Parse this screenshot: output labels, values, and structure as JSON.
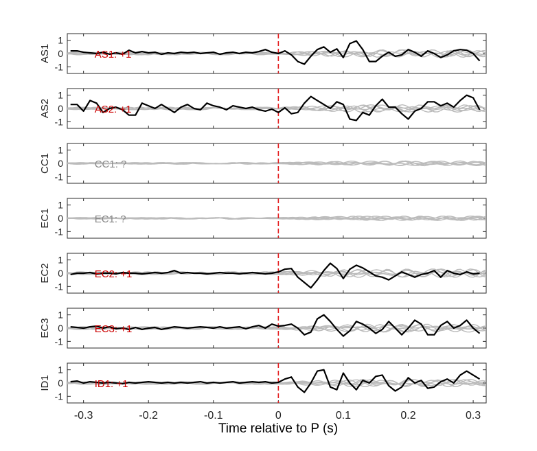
{
  "figure": {
    "xlabel": "Time relative to P (s)",
    "x_ticks": [
      "-0.3",
      "-0.2",
      "-0.1",
      "0",
      "0.1",
      "0.2",
      "0.3"
    ],
    "y_ticks": [
      "1",
      "0",
      "-1"
    ]
  },
  "colors": {
    "signal": "#000000",
    "background_traces": "#bbbbbb",
    "p_marker": "#e41a1c",
    "polarity_determined": "#cc0000",
    "polarity_unknown": "#888888"
  },
  "chart_data": [
    {
      "type": "line",
      "channel": "AS1",
      "annotation": "AS1: +1",
      "polarity": "+1",
      "x": [
        -0.32,
        -0.31,
        -0.3,
        -0.29,
        -0.28,
        -0.27,
        -0.26,
        -0.25,
        -0.24,
        -0.23,
        -0.22,
        -0.21,
        -0.2,
        -0.19,
        -0.18,
        -0.17,
        -0.16,
        -0.15,
        -0.14,
        -0.13,
        -0.12,
        -0.11,
        -0.1,
        -0.09,
        -0.08,
        -0.07,
        -0.06,
        -0.05,
        -0.04,
        -0.03,
        -0.02,
        -0.01,
        0.0,
        0.01,
        0.02,
        0.03,
        0.04,
        0.05,
        0.06,
        0.07,
        0.08,
        0.09,
        0.1,
        0.11,
        0.12,
        0.13,
        0.14,
        0.15,
        0.16,
        0.17,
        0.18,
        0.19,
        0.2,
        0.21,
        0.22,
        0.23,
        0.24,
        0.25,
        0.26,
        0.27,
        0.28,
        0.29,
        0.3,
        0.31
      ],
      "y": [
        0.2,
        0.2,
        0.1,
        0.05,
        0.0,
        0.1,
        -0.05,
        0.05,
        -0.05,
        0.25,
        0.05,
        0.15,
        0.05,
        0.1,
        -0.05,
        0.05,
        0.0,
        0.1,
        0.05,
        0.1,
        0.0,
        0.05,
        0.1,
        -0.05,
        0.05,
        0.1,
        0.0,
        0.1,
        0.05,
        0.15,
        0.3,
        0.1,
        0.0,
        0.2,
        -0.1,
        -0.6,
        -0.8,
        -0.2,
        0.3,
        0.5,
        0.1,
        0.35,
        -0.3,
        0.75,
        0.95,
        0.3,
        -0.6,
        -0.6,
        -0.2,
        0.1,
        -0.2,
        -0.1,
        0.3,
        0.1,
        -0.2,
        0.2,
        0.0,
        -0.3,
        -0.1,
        0.2,
        0.3,
        0.25,
        0.0,
        -0.55
      ],
      "ylim": [
        -1.5,
        1.5
      ],
      "xlim": [
        -0.325,
        0.32
      ]
    },
    {
      "type": "line",
      "channel": "AS2",
      "annotation": "AS2: +1",
      "polarity": "+1",
      "x": [
        -0.32,
        -0.31,
        -0.3,
        -0.29,
        -0.28,
        -0.27,
        -0.26,
        -0.25,
        -0.24,
        -0.23,
        -0.22,
        -0.21,
        -0.2,
        -0.19,
        -0.18,
        -0.17,
        -0.16,
        -0.15,
        -0.14,
        -0.13,
        -0.12,
        -0.11,
        -0.1,
        -0.09,
        -0.08,
        -0.07,
        -0.06,
        -0.05,
        -0.04,
        -0.03,
        -0.02,
        -0.01,
        0.0,
        0.01,
        0.02,
        0.03,
        0.04,
        0.05,
        0.06,
        0.07,
        0.08,
        0.09,
        0.1,
        0.11,
        0.12,
        0.13,
        0.14,
        0.15,
        0.16,
        0.17,
        0.18,
        0.19,
        0.2,
        0.21,
        0.22,
        0.23,
        0.24,
        0.25,
        0.26,
        0.27,
        0.28,
        0.29,
        0.3,
        0.31
      ],
      "y": [
        0.3,
        0.3,
        -0.2,
        0.6,
        0.4,
        -0.3,
        0.0,
        0.1,
        -0.1,
        -0.5,
        -0.5,
        0.4,
        0.2,
        0.0,
        0.3,
        0.0,
        -0.3,
        0.1,
        0.3,
        0.0,
        -0.1,
        0.4,
        0.2,
        0.1,
        -0.1,
        0.2,
        0.1,
        0.0,
        0.1,
        -0.1,
        -0.2,
        -0.05,
        -0.3,
        0.05,
        -0.4,
        -0.3,
        0.4,
        0.9,
        0.6,
        0.3,
        0.0,
        0.5,
        0.3,
        -0.8,
        -0.9,
        -0.3,
        -0.5,
        0.2,
        0.7,
        0.1,
        0.1,
        -0.4,
        -0.8,
        -0.2,
        0.0,
        0.5,
        0.5,
        0.2,
        0.4,
        0.1,
        0.6,
        1.0,
        0.8,
        -0.1
      ],
      "ylim": [
        -1.5,
        1.5
      ],
      "xlim": [
        -0.325,
        0.32
      ]
    },
    {
      "type": "line",
      "channel": "CC1",
      "annotation": "CC1: ?",
      "polarity": "?",
      "x": [],
      "y": [],
      "ylim": [
        -1.5,
        1.5
      ],
      "xlim": [
        -0.325,
        0.32
      ]
    },
    {
      "type": "line",
      "channel": "EC1",
      "annotation": "EC1: ?",
      "polarity": "?",
      "x": [],
      "y": [],
      "ylim": [
        -1.5,
        1.5
      ],
      "xlim": [
        -0.325,
        0.32
      ]
    },
    {
      "type": "line",
      "channel": "EC2",
      "annotation": "EC2: +1",
      "polarity": "+1",
      "x": [
        -0.32,
        -0.31,
        -0.3,
        -0.29,
        -0.28,
        -0.27,
        -0.26,
        -0.25,
        -0.24,
        -0.23,
        -0.22,
        -0.21,
        -0.2,
        -0.19,
        -0.18,
        -0.17,
        -0.16,
        -0.15,
        -0.14,
        -0.13,
        -0.12,
        -0.11,
        -0.1,
        -0.09,
        -0.08,
        -0.07,
        -0.06,
        -0.05,
        -0.04,
        -0.03,
        -0.02,
        -0.01,
        0.0,
        0.01,
        0.02,
        0.03,
        0.04,
        0.05,
        0.06,
        0.07,
        0.08,
        0.09,
        0.1,
        0.11,
        0.12,
        0.13,
        0.14,
        0.15,
        0.16,
        0.17,
        0.18,
        0.19,
        0.2,
        0.21,
        0.22,
        0.23,
        0.24,
        0.25,
        0.26,
        0.27,
        0.28,
        0.29,
        0.3,
        0.31
      ],
      "y": [
        -0.1,
        0.0,
        0.0,
        0.05,
        -0.05,
        0.0,
        0.0,
        -0.05,
        0.05,
        0.0,
        0.0,
        -0.05,
        0.0,
        0.05,
        0.0,
        0.05,
        0.2,
        0.0,
        0.05,
        0.0,
        0.0,
        -0.05,
        0.0,
        0.05,
        0.0,
        0.0,
        -0.05,
        0.0,
        0.05,
        0.0,
        -0.05,
        0.0,
        0.1,
        0.3,
        0.35,
        -0.3,
        -0.7,
        -1.1,
        -0.5,
        0.2,
        0.75,
        0.35,
        -0.4,
        0.3,
        0.6,
        0.4,
        0.1,
        -0.2,
        -0.3,
        -0.5,
        -0.2,
        0.1,
        -0.1,
        -0.3,
        -0.1,
        0.0,
        0.2,
        -0.3,
        0.2,
        0.0,
        -0.1,
        0.1,
        -0.05,
        0.0
      ],
      "ylim": [
        -1.5,
        1.5
      ],
      "xlim": [
        -0.325,
        0.32
      ]
    },
    {
      "type": "line",
      "channel": "EC3",
      "annotation": "EC3: +1",
      "polarity": "+1",
      "x": [
        -0.32,
        -0.31,
        -0.3,
        -0.29,
        -0.28,
        -0.27,
        -0.26,
        -0.25,
        -0.24,
        -0.23,
        -0.22,
        -0.21,
        -0.2,
        -0.19,
        -0.18,
        -0.17,
        -0.16,
        -0.15,
        -0.14,
        -0.13,
        -0.12,
        -0.11,
        -0.1,
        -0.09,
        -0.08,
        -0.07,
        -0.06,
        -0.05,
        -0.04,
        -0.03,
        -0.02,
        -0.01,
        0.0,
        0.01,
        0.02,
        0.03,
        0.04,
        0.05,
        0.06,
        0.07,
        0.08,
        0.09,
        0.1,
        0.11,
        0.12,
        0.13,
        0.14,
        0.15,
        0.16,
        0.17,
        0.18,
        0.19,
        0.2,
        0.21,
        0.22,
        0.23,
        0.24,
        0.25,
        0.26,
        0.27,
        0.28,
        0.29,
        0.3,
        0.31
      ],
      "y": [
        0.1,
        0.05,
        0.0,
        0.1,
        0.15,
        0.0,
        0.1,
        -0.05,
        0.0,
        -0.1,
        0.05,
        -0.1,
        0.0,
        0.05,
        -0.1,
        0.0,
        0.1,
        0.05,
        0.0,
        0.05,
        0.1,
        0.05,
        0.0,
        0.1,
        0.0,
        0.05,
        0.1,
        -0.05,
        0.1,
        0.2,
        0.0,
        0.3,
        0.15,
        0.2,
        0.3,
        0.0,
        -0.5,
        -0.3,
        0.7,
        1.0,
        0.5,
        -0.1,
        -0.6,
        -0.2,
        0.5,
        0.3,
        0.0,
        -0.4,
        -0.1,
        0.5,
        0.0,
        -0.5,
        0.0,
        0.6,
        0.3,
        -0.5,
        -0.5,
        0.2,
        0.5,
        0.0,
        0.2,
        0.6,
        0.0,
        -0.4
      ],
      "ylim": [
        -1.5,
        1.5
      ],
      "xlim": [
        -0.325,
        0.32
      ]
    },
    {
      "type": "line",
      "channel": "ID1",
      "annotation": "ID1: +1",
      "polarity": "+1",
      "x": [
        -0.32,
        -0.31,
        -0.3,
        -0.29,
        -0.28,
        -0.27,
        -0.26,
        -0.25,
        -0.24,
        -0.23,
        -0.22,
        -0.21,
        -0.2,
        -0.19,
        -0.18,
        -0.17,
        -0.16,
        -0.15,
        -0.14,
        -0.13,
        -0.12,
        -0.11,
        -0.1,
        -0.09,
        -0.08,
        -0.07,
        -0.06,
        -0.05,
        -0.04,
        -0.03,
        -0.02,
        -0.01,
        0.0,
        0.01,
        0.02,
        0.03,
        0.04,
        0.05,
        0.06,
        0.07,
        0.08,
        0.09,
        0.1,
        0.11,
        0.12,
        0.13,
        0.14,
        0.15,
        0.16,
        0.17,
        0.18,
        0.19,
        0.2,
        0.21,
        0.22,
        0.23,
        0.24,
        0.25,
        0.26,
        0.27,
        0.28,
        0.29,
        0.3,
        0.31
      ],
      "y": [
        0.1,
        0.15,
        0.0,
        0.1,
        0.05,
        0.0,
        0.05,
        0.0,
        -0.05,
        0.05,
        0.0,
        0.05,
        0.1,
        0.05,
        0.0,
        0.05,
        0.0,
        0.05,
        0.0,
        0.05,
        0.1,
        0.0,
        0.05,
        0.0,
        0.05,
        0.1,
        0.0,
        0.05,
        0.1,
        0.05,
        0.1,
        0.0,
        0.05,
        0.3,
        0.45,
        -0.3,
        -0.7,
        0.0,
        0.9,
        1.0,
        -0.3,
        -0.5,
        0.75,
        0.0,
        -0.5,
        0.2,
        0.0,
        0.5,
        0.6,
        -0.2,
        -0.6,
        -0.3,
        0.4,
        0.0,
        0.2,
        -0.4,
        -0.3,
        0.1,
        0.3,
        0.0,
        0.6,
        0.9,
        0.6,
        0.3
      ],
      "ylim": [
        -1.5,
        1.5
      ],
      "xlim": [
        -0.325,
        0.32
      ]
    }
  ]
}
